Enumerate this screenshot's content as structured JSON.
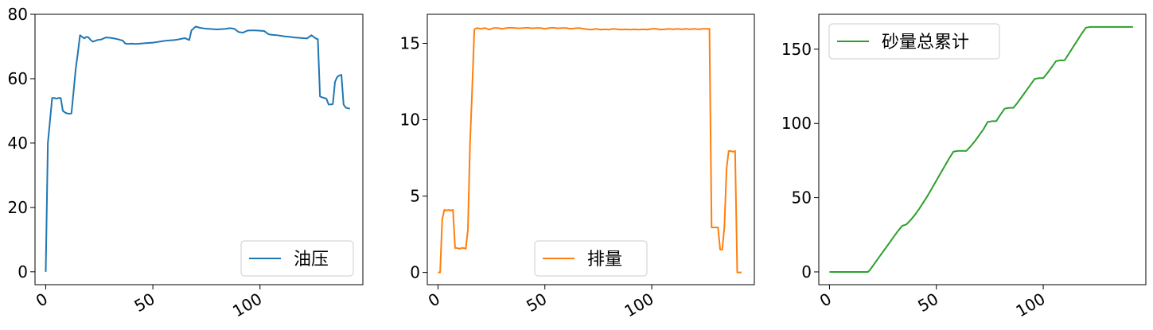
{
  "chart_data": [
    {
      "type": "line",
      "legend_position": "lower-right",
      "grid": false,
      "xlim": [
        -5,
        148
      ],
      "ylim": [
        -4,
        80
      ],
      "xticks": [
        0,
        50,
        100
      ],
      "xtick_labels": [
        "0",
        "50",
        "100"
      ],
      "yticks": [
        0,
        20,
        40,
        60,
        80
      ],
      "ytick_labels": [
        "0",
        "20",
        "40",
        "60",
        "80"
      ],
      "series": [
        {
          "name": "油压",
          "color": "#1f77b4",
          "x": [
            0,
            1,
            2,
            3,
            4,
            5,
            6,
            7,
            8,
            9,
            10,
            11,
            12,
            13,
            14,
            15,
            16,
            17,
            18,
            19,
            20,
            21,
            22,
            24,
            26,
            28,
            30,
            32,
            34,
            36,
            37,
            38,
            40,
            42,
            44,
            46,
            48,
            50,
            52,
            54,
            56,
            58,
            60,
            62,
            64,
            65,
            66,
            67,
            68,
            70,
            72,
            74,
            76,
            78,
            80,
            82,
            84,
            86,
            88,
            90,
            92,
            93,
            94,
            95,
            96,
            98,
            100,
            102,
            104,
            106,
            108,
            110,
            112,
            114,
            116,
            118,
            120,
            122,
            124,
            125,
            126,
            127,
            128,
            129,
            130,
            131,
            132,
            133,
            134,
            135,
            136,
            137,
            138,
            139,
            140,
            141,
            142
          ],
          "values": [
            0,
            40,
            47,
            54,
            54,
            53.8,
            54,
            54,
            50,
            49.5,
            49.2,
            49.1,
            49.2,
            56,
            63,
            68,
            73.5,
            73,
            72.5,
            73,
            72.8,
            72,
            71.5,
            72,
            72.2,
            72.8,
            72.7,
            72.5,
            72.2,
            71.8,
            71,
            70.8,
            70.9,
            70.8,
            70.9,
            71,
            71.1,
            71.2,
            71.4,
            71.6,
            71.8,
            71.9,
            72,
            72.2,
            72.5,
            72.6,
            72.3,
            72,
            75,
            76.2,
            75.8,
            75.6,
            75.5,
            75.4,
            75.3,
            75.4,
            75.5,
            75.7,
            75.5,
            74.5,
            74.3,
            74.6,
            74.9,
            75,
            75,
            75,
            74.9,
            74.8,
            73.8,
            73.6,
            73.5,
            73.3,
            73.1,
            73,
            72.8,
            72.7,
            72.6,
            72.5,
            73.5,
            73,
            72.5,
            72.3,
            54.5,
            54.2,
            54,
            53.8,
            52,
            52,
            52.1,
            59,
            60.5,
            61,
            61.2,
            52,
            51,
            50.8,
            50.7
          ]
        }
      ]
    },
    {
      "type": "line",
      "legend_position": "lower-center",
      "grid": false,
      "xlim": [
        -5,
        148
      ],
      "ylim": [
        -0.8,
        16.9
      ],
      "xticks": [
        0,
        50,
        100
      ],
      "xtick_labels": [
        "0",
        "50",
        "100"
      ],
      "yticks": [
        0,
        5,
        10,
        15
      ],
      "ytick_labels": [
        "0",
        "5",
        "10",
        "15"
      ],
      "series": [
        {
          "name": "排量",
          "color": "#ff7f0e",
          "x": [
            0,
            1,
            2,
            3,
            4,
            5,
            6,
            7,
            8,
            9,
            10,
            11,
            12,
            13,
            14,
            15,
            16,
            17,
            18,
            20,
            22,
            24,
            26,
            28,
            30,
            32,
            34,
            36,
            38,
            40,
            42,
            44,
            46,
            48,
            50,
            52,
            54,
            56,
            58,
            60,
            62,
            64,
            66,
            68,
            70,
            72,
            74,
            76,
            78,
            80,
            82,
            84,
            86,
            88,
            90,
            92,
            94,
            96,
            98,
            100,
            102,
            104,
            106,
            108,
            110,
            112,
            114,
            116,
            118,
            120,
            122,
            124,
            126,
            127,
            128,
            129,
            130,
            131,
            132,
            133,
            134,
            135,
            136,
            137,
            138,
            139,
            140,
            141,
            142
          ],
          "values": [
            0,
            0,
            3.5,
            4.1,
            4.05,
            4.1,
            4.05,
            4.1,
            1.6,
            1.6,
            1.55,
            1.6,
            1.6,
            1.55,
            2.8,
            8.5,
            12,
            15.9,
            16,
            15.95,
            16,
            15.9,
            16,
            16,
            15.95,
            16,
            16.02,
            16,
            15.98,
            16,
            16.02,
            15.98,
            16,
            16,
            15.95,
            16,
            16.02,
            15.98,
            16,
            16,
            15.95,
            15.98,
            16,
            15.95,
            15.92,
            15.9,
            15.95,
            15.9,
            15.92,
            15.9,
            15.95,
            15.92,
            15.9,
            15.92,
            15.9,
            15.92,
            15.9,
            15.92,
            15.9,
            15.95,
            15.95,
            15.9,
            15.92,
            15.95,
            15.92,
            15.95,
            15.92,
            15.95,
            15.92,
            15.95,
            15.92,
            15.95,
            15.95,
            15.95,
            2.95,
            2.95,
            2.95,
            2.95,
            1.5,
            1.5,
            3,
            6.8,
            7.95,
            7.95,
            7.9,
            7.95,
            0,
            0,
            0
          ]
        }
      ]
    },
    {
      "type": "line",
      "legend_position": "upper-left",
      "grid": false,
      "xlim": [
        -5,
        148
      ],
      "ylim": [
        -8.6,
        173.5
      ],
      "xticks": [
        0,
        50,
        100
      ],
      "xtick_labels": [
        "0",
        "50",
        "100"
      ],
      "yticks": [
        0,
        50,
        100,
        150
      ],
      "ytick_labels": [
        "0",
        "50",
        "100",
        "150"
      ],
      "series": [
        {
          "name": "砂量总累计",
          "color": "#2ca02c",
          "x": [
            0,
            18,
            19,
            20,
            22,
            24,
            26,
            28,
            30,
            32,
            34,
            36,
            37,
            38,
            40,
            42,
            44,
            46,
            48,
            50,
            52,
            54,
            56,
            58,
            60,
            62,
            63,
            64,
            66,
            68,
            70,
            72,
            74,
            76,
            78,
            80,
            82,
            84,
            86,
            88,
            90,
            92,
            94,
            96,
            98,
            100,
            102,
            104,
            106,
            108,
            110,
            112,
            114,
            116,
            118,
            120,
            122,
            124,
            126,
            128,
            130,
            132,
            134,
            136,
            138,
            140,
            142
          ],
          "values": [
            0,
            0,
            1.5,
            3.5,
            7.5,
            11.5,
            15.5,
            19.5,
            23.5,
            27.5,
            31,
            32,
            33.5,
            35,
            38.5,
            42.5,
            47,
            51.5,
            56.5,
            61.5,
            66.5,
            71.5,
            76.5,
            81,
            81.5,
            81.5,
            81.5,
            81.5,
            84.5,
            88,
            92,
            96,
            101,
            101.5,
            101.5,
            106,
            110,
            110.5,
            110.5,
            114,
            118,
            122,
            126,
            130,
            130.5,
            130.5,
            134,
            138,
            142,
            142.5,
            142.5,
            147,
            151.5,
            156,
            160.5,
            164.5,
            165,
            165,
            165,
            165,
            165,
            165,
            165,
            165,
            165,
            165,
            165
          ]
        }
      ]
    }
  ]
}
